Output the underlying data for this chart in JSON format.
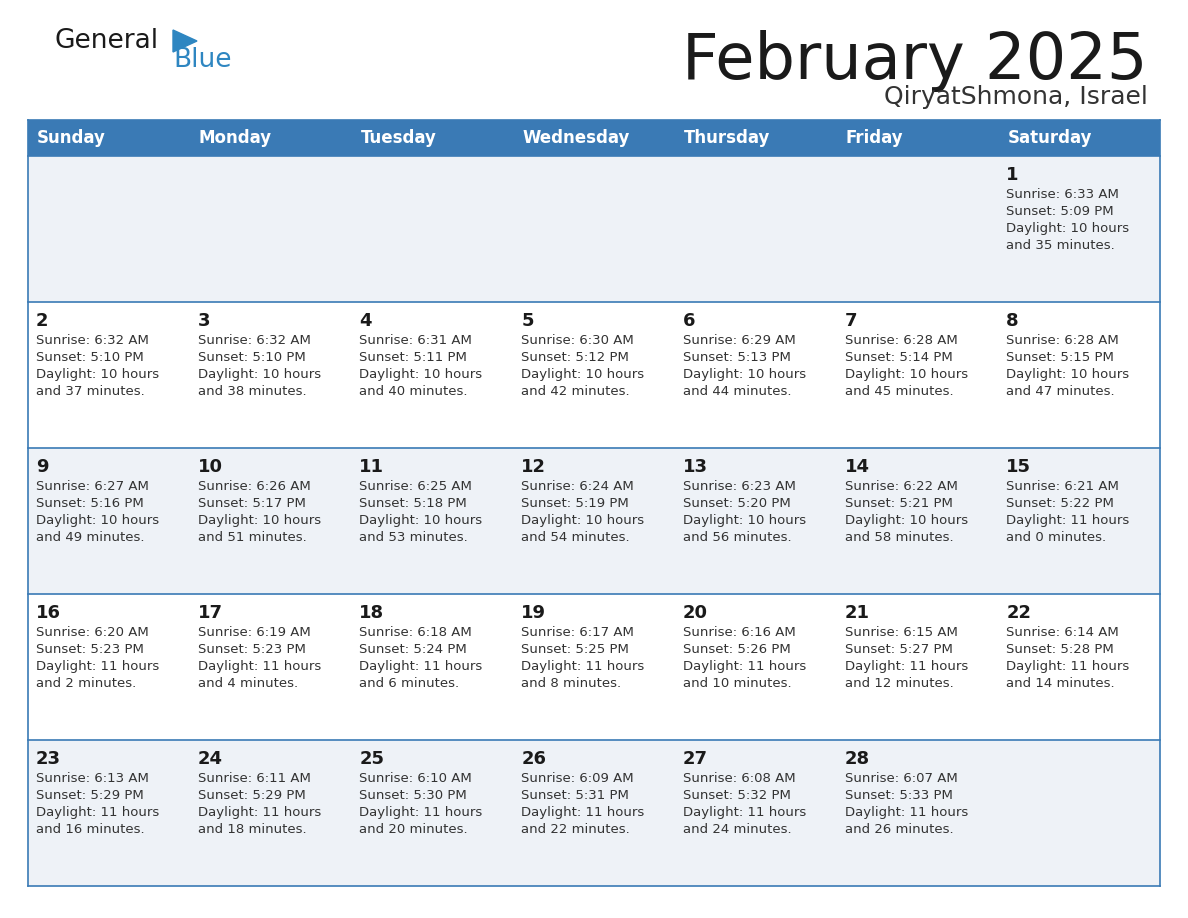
{
  "title": "February 2025",
  "subtitle": "QiryatShmona, Israel",
  "header_bg": "#3a7ab5",
  "header_text": "#ffffff",
  "row_bg_light": "#eef2f7",
  "row_bg_white": "#ffffff",
  "border_color": "#3a7ab5",
  "day_headers": [
    "Sunday",
    "Monday",
    "Tuesday",
    "Wednesday",
    "Thursday",
    "Friday",
    "Saturday"
  ],
  "title_color": "#1a1a1a",
  "subtitle_color": "#333333",
  "day_num_color": "#1a1a1a",
  "cell_text_color": "#333333",
  "logo_general_color": "#1a1a1a",
  "logo_blue_color": "#2e86c1",
  "logo_triangle_color": "#2e86c1",
  "calendar_data": [
    [
      null,
      null,
      null,
      null,
      null,
      null,
      {
        "day": "1",
        "sunrise": "6:33 AM",
        "sunset": "5:09 PM",
        "daylight1": "Daylight: 10 hours",
        "daylight2": "and 35 minutes."
      }
    ],
    [
      {
        "day": "2",
        "sunrise": "6:32 AM",
        "sunset": "5:10 PM",
        "daylight1": "Daylight: 10 hours",
        "daylight2": "and 37 minutes."
      },
      {
        "day": "3",
        "sunrise": "6:32 AM",
        "sunset": "5:10 PM",
        "daylight1": "Daylight: 10 hours",
        "daylight2": "and 38 minutes."
      },
      {
        "day": "4",
        "sunrise": "6:31 AM",
        "sunset": "5:11 PM",
        "daylight1": "Daylight: 10 hours",
        "daylight2": "and 40 minutes."
      },
      {
        "day": "5",
        "sunrise": "6:30 AM",
        "sunset": "5:12 PM",
        "daylight1": "Daylight: 10 hours",
        "daylight2": "and 42 minutes."
      },
      {
        "day": "6",
        "sunrise": "6:29 AM",
        "sunset": "5:13 PM",
        "daylight1": "Daylight: 10 hours",
        "daylight2": "and 44 minutes."
      },
      {
        "day": "7",
        "sunrise": "6:28 AM",
        "sunset": "5:14 PM",
        "daylight1": "Daylight: 10 hours",
        "daylight2": "and 45 minutes."
      },
      {
        "day": "8",
        "sunrise": "6:28 AM",
        "sunset": "5:15 PM",
        "daylight1": "Daylight: 10 hours",
        "daylight2": "and 47 minutes."
      }
    ],
    [
      {
        "day": "9",
        "sunrise": "6:27 AM",
        "sunset": "5:16 PM",
        "daylight1": "Daylight: 10 hours",
        "daylight2": "and 49 minutes."
      },
      {
        "day": "10",
        "sunrise": "6:26 AM",
        "sunset": "5:17 PM",
        "daylight1": "Daylight: 10 hours",
        "daylight2": "and 51 minutes."
      },
      {
        "day": "11",
        "sunrise": "6:25 AM",
        "sunset": "5:18 PM",
        "daylight1": "Daylight: 10 hours",
        "daylight2": "and 53 minutes."
      },
      {
        "day": "12",
        "sunrise": "6:24 AM",
        "sunset": "5:19 PM",
        "daylight1": "Daylight: 10 hours",
        "daylight2": "and 54 minutes."
      },
      {
        "day": "13",
        "sunrise": "6:23 AM",
        "sunset": "5:20 PM",
        "daylight1": "Daylight: 10 hours",
        "daylight2": "and 56 minutes."
      },
      {
        "day": "14",
        "sunrise": "6:22 AM",
        "sunset": "5:21 PM",
        "daylight1": "Daylight: 10 hours",
        "daylight2": "and 58 minutes."
      },
      {
        "day": "15",
        "sunrise": "6:21 AM",
        "sunset": "5:22 PM",
        "daylight1": "Daylight: 11 hours",
        "daylight2": "and 0 minutes."
      }
    ],
    [
      {
        "day": "16",
        "sunrise": "6:20 AM",
        "sunset": "5:23 PM",
        "daylight1": "Daylight: 11 hours",
        "daylight2": "and 2 minutes."
      },
      {
        "day": "17",
        "sunrise": "6:19 AM",
        "sunset": "5:23 PM",
        "daylight1": "Daylight: 11 hours",
        "daylight2": "and 4 minutes."
      },
      {
        "day": "18",
        "sunrise": "6:18 AM",
        "sunset": "5:24 PM",
        "daylight1": "Daylight: 11 hours",
        "daylight2": "and 6 minutes."
      },
      {
        "day": "19",
        "sunrise": "6:17 AM",
        "sunset": "5:25 PM",
        "daylight1": "Daylight: 11 hours",
        "daylight2": "and 8 minutes."
      },
      {
        "day": "20",
        "sunrise": "6:16 AM",
        "sunset": "5:26 PM",
        "daylight1": "Daylight: 11 hours",
        "daylight2": "and 10 minutes."
      },
      {
        "day": "21",
        "sunrise": "6:15 AM",
        "sunset": "5:27 PM",
        "daylight1": "Daylight: 11 hours",
        "daylight2": "and 12 minutes."
      },
      {
        "day": "22",
        "sunrise": "6:14 AM",
        "sunset": "5:28 PM",
        "daylight1": "Daylight: 11 hours",
        "daylight2": "and 14 minutes."
      }
    ],
    [
      {
        "day": "23",
        "sunrise": "6:13 AM",
        "sunset": "5:29 PM",
        "daylight1": "Daylight: 11 hours",
        "daylight2": "and 16 minutes."
      },
      {
        "day": "24",
        "sunrise": "6:11 AM",
        "sunset": "5:29 PM",
        "daylight1": "Daylight: 11 hours",
        "daylight2": "and 18 minutes."
      },
      {
        "day": "25",
        "sunrise": "6:10 AM",
        "sunset": "5:30 PM",
        "daylight1": "Daylight: 11 hours",
        "daylight2": "and 20 minutes."
      },
      {
        "day": "26",
        "sunrise": "6:09 AM",
        "sunset": "5:31 PM",
        "daylight1": "Daylight: 11 hours",
        "daylight2": "and 22 minutes."
      },
      {
        "day": "27",
        "sunrise": "6:08 AM",
        "sunset": "5:32 PM",
        "daylight1": "Daylight: 11 hours",
        "daylight2": "and 24 minutes."
      },
      {
        "day": "28",
        "sunrise": "6:07 AM",
        "sunset": "5:33 PM",
        "daylight1": "Daylight: 11 hours",
        "daylight2": "and 26 minutes."
      },
      null
    ]
  ]
}
